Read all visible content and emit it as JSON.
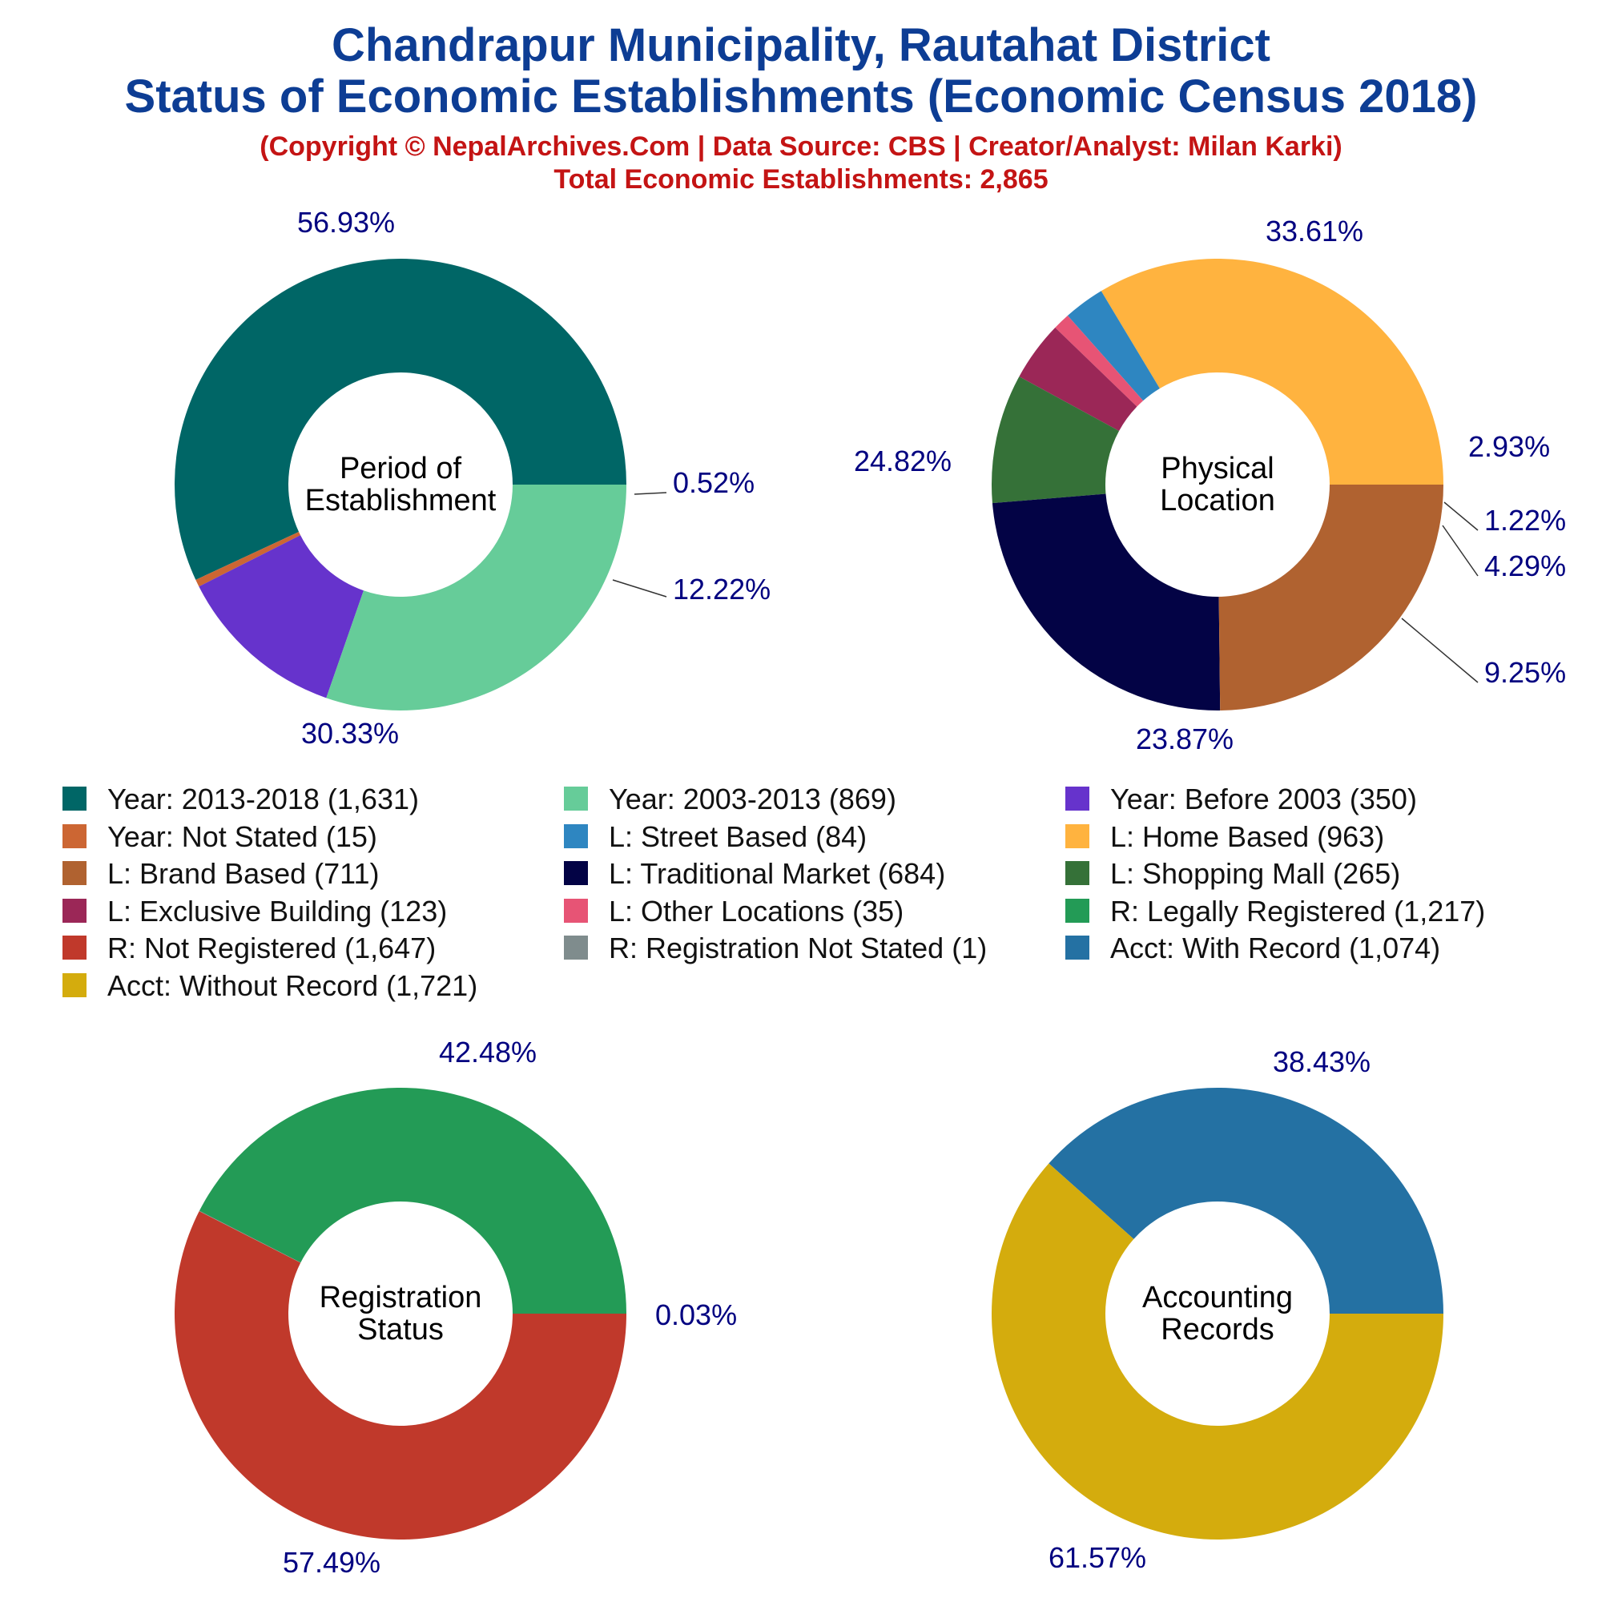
{
  "header": {
    "title_line1": "Chandrapur Municipality, Rautahat District",
    "title_line2": "Status of Economic Establishments (Economic Census 2018)",
    "credit_line": "(Copyright © NepalArchives.Com | Data Source: CBS | Creator/Analyst: Milan Karki)",
    "total_line": "Total Economic Establishments: 2,865"
  },
  "chart_data": [
    {
      "type": "pie",
      "center_label": [
        "Period of",
        "Establishment"
      ],
      "slices": [
        {
          "label": "Year: 2013-2018",
          "value": 1631,
          "pct": "56.93%",
          "color": "#006666"
        },
        {
          "label": "Year: Not Stated",
          "value": 15,
          "pct": "0.52%",
          "color": "#cc6633"
        },
        {
          "label": "Year: Before 2003",
          "value": 350,
          "pct": "12.22%",
          "color": "#6633cc"
        },
        {
          "label": "Year: 2003-2013",
          "value": 869,
          "pct": "30.33%",
          "color": "#66cc99"
        }
      ]
    },
    {
      "type": "pie",
      "center_label": [
        "Physical",
        "Location"
      ],
      "slices": [
        {
          "label": "L: Home Based",
          "value": 963,
          "pct": "33.61%",
          "color": "#ffb33f"
        },
        {
          "label": "L: Street Based",
          "value": 84,
          "pct": "2.93%",
          "color": "#2e86c1"
        },
        {
          "label": "L: Other Locations",
          "value": 35,
          "pct": "1.22%",
          "color": "#e75475"
        },
        {
          "label": "L: Exclusive Building",
          "value": 123,
          "pct": "4.29%",
          "color": "#9b2757"
        },
        {
          "label": "L: Shopping Mall",
          "value": 265,
          "pct": "9.25%",
          "color": "#357138"
        },
        {
          "label": "L: Traditional Market",
          "value": 684,
          "pct": "23.87%",
          "color": "#030345"
        },
        {
          "label": "L: Brand Based",
          "value": 711,
          "pct": "24.82%",
          "color": "#b06230"
        }
      ]
    },
    {
      "type": "pie",
      "center_label": [
        "Registration",
        "Status"
      ],
      "slices": [
        {
          "label": "R: Legally Registered",
          "value": 1217,
          "pct": "42.48%",
          "color": "#239b56"
        },
        {
          "label": "R: Registration Not Stated",
          "value": 1,
          "pct": "0.03%",
          "color": "#7f8c8d"
        },
        {
          "label": "R: Not Registered",
          "value": 1647,
          "pct": "57.49%",
          "color": "#c0392b"
        }
      ]
    },
    {
      "type": "pie",
      "center_label": [
        "Accounting",
        "Records"
      ],
      "slices": [
        {
          "label": "Acct: With Record",
          "value": 1074,
          "pct": "38.43%",
          "color": "#2471a3"
        },
        {
          "label": "Acct: Without Record",
          "value": 1721,
          "pct": "61.57%",
          "color": "#d4ac0d"
        }
      ]
    }
  ],
  "legend": {
    "items": [
      {
        "text": "Year: 2013-2018 (1,631)",
        "color": "#006666"
      },
      {
        "text": "Year: 2003-2013 (869)",
        "color": "#66cc99"
      },
      {
        "text": "Year: Before 2003 (350)",
        "color": "#6633cc"
      },
      {
        "text": "Year: Not Stated (15)",
        "color": "#cc6633"
      },
      {
        "text": "L: Street Based (84)",
        "color": "#2e86c1"
      },
      {
        "text": "L: Home Based (963)",
        "color": "#ffb33f"
      },
      {
        "text": "L: Brand Based (711)",
        "color": "#b06230"
      },
      {
        "text": "L: Traditional Market (684)",
        "color": "#030345"
      },
      {
        "text": "L: Shopping Mall (265)",
        "color": "#357138"
      },
      {
        "text": "L: Exclusive Building (123)",
        "color": "#9b2757"
      },
      {
        "text": "L: Other Locations (35)",
        "color": "#e75475"
      },
      {
        "text": "R: Legally Registered (1,217)",
        "color": "#239b56"
      },
      {
        "text": "R: Not Registered (1,647)",
        "color": "#c0392b"
      },
      {
        "text": "R: Registration Not Stated (1)",
        "color": "#7f8c8d"
      },
      {
        "text": "Acct: With Record (1,074)",
        "color": "#2471a3"
      },
      {
        "text": "Acct: Without Record (1,721)",
        "color": "#d4ac0d"
      }
    ]
  }
}
